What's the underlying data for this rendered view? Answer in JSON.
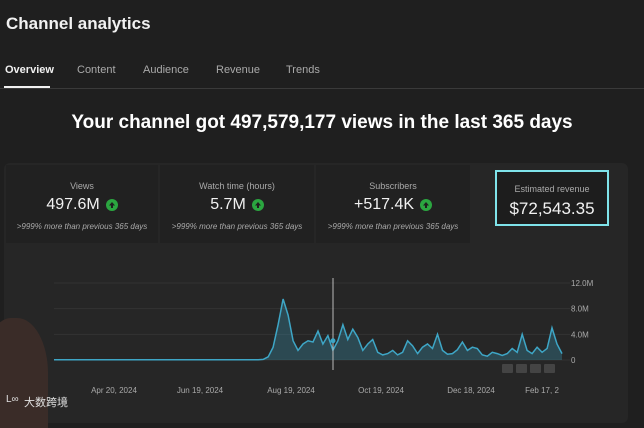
{
  "title": "Channel analytics",
  "tabs": [
    "Overview",
    "Content",
    "Audience",
    "Revenue",
    "Trends"
  ],
  "headline": "Your channel got 497,579,177 views in the last 365 days",
  "stats": [
    {
      "label": "Views",
      "value": "497.6M",
      "note": ">999% more than previous 365 days",
      "icon": "arrow-up-icon"
    },
    {
      "label": "Watch time (hours)",
      "value": "5.7M",
      "note": ">999% more than previous 365 days",
      "icon": "arrow-up-icon"
    },
    {
      "label": "Subscribers",
      "value": "+517.4K",
      "note": ">999% more than previous 365 days",
      "icon": "arrow-up-icon"
    },
    {
      "label": "Estimated revenue",
      "value": "$72,543.35"
    }
  ],
  "colors": {
    "accent": "#3ea6c6",
    "highlight": "#7fe3ea",
    "positive": "#2ba640"
  },
  "chart_data": {
    "type": "area",
    "x_ticks": [
      "Apr 20, 2024",
      "Jun 19, 2024",
      "Aug 19, 2024",
      "Oct 19, 2024",
      "Dec 18, 2024",
      "Feb 17, 2"
    ],
    "y_ticks": [
      "12.0M",
      "8.0M",
      "4.0M",
      "0"
    ],
    "ylim": [
      0,
      12000000
    ],
    "series": [
      {
        "values": [
          0.05,
          0.05,
          0.05,
          0.05,
          0.05,
          0.05,
          0.05,
          0.05,
          0.05,
          0.05,
          0.05,
          0.05,
          0.05,
          0.05,
          0.05,
          0.05,
          0.05,
          0.05,
          0.05,
          0.05,
          0.05,
          0.05,
          0.05,
          0.05,
          0.05,
          0.05,
          0.05,
          0.05,
          0.05,
          0.05,
          0.05,
          0.05,
          0.05,
          0.05,
          0.05,
          0.05,
          0.05,
          0.05,
          0.05,
          0.05,
          0.05,
          0.05,
          0.1,
          0.5,
          2.0,
          5.5,
          9.5,
          7.0,
          3.0,
          1.5,
          2.5,
          3.0,
          2.8,
          4.5,
          2.5,
          3.8,
          1.5,
          3.0,
          5.5,
          3.2,
          4.8,
          3.5,
          1.5,
          2.5,
          3.2,
          1.2,
          0.8,
          1.0,
          1.5,
          0.8,
          1.2,
          3.0,
          2.2,
          1.0,
          2.0,
          2.5,
          1.8,
          4.0,
          1.5,
          0.9,
          1.0,
          1.6,
          2.8,
          1.5,
          2.0,
          1.8,
          0.8,
          0.6,
          1.2,
          1.0,
          0.7,
          1.0,
          1.8,
          1.2,
          4.0,
          1.5,
          1.0,
          2.0,
          1.2,
          1.8,
          5.0,
          2.5,
          1.0
        ]
      }
    ],
    "controls": [
      "zoom-out-icon",
      "chart-control-icon",
      "chart-control-icon",
      "chart-control-icon"
    ]
  },
  "watermark": "大数跨境",
  "watermark_logo": "L∞"
}
